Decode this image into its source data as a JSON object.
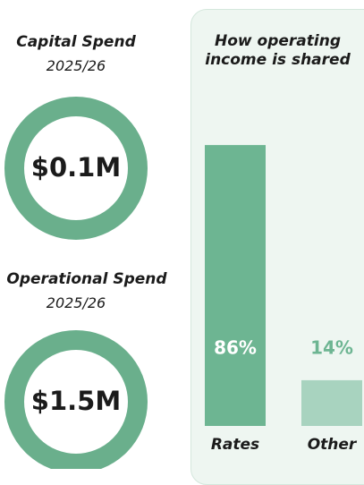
{
  "stats": [
    {
      "title": "Capital Spend",
      "subtitle": "2025/26",
      "value": "$0.1M"
    },
    {
      "title": "Operational Spend",
      "subtitle": "2025/26",
      "value": "$1.5M"
    }
  ],
  "chart_data": {
    "type": "bar",
    "title": "How operating income is shared",
    "categories": [
      "Rates",
      "Other"
    ],
    "values": [
      86,
      14
    ],
    "value_labels": [
      "86%",
      "14%"
    ],
    "colors": [
      "#6db592",
      "#a8d3bf"
    ],
    "label_colors": [
      "#ffffff",
      "#6db592"
    ]
  }
}
